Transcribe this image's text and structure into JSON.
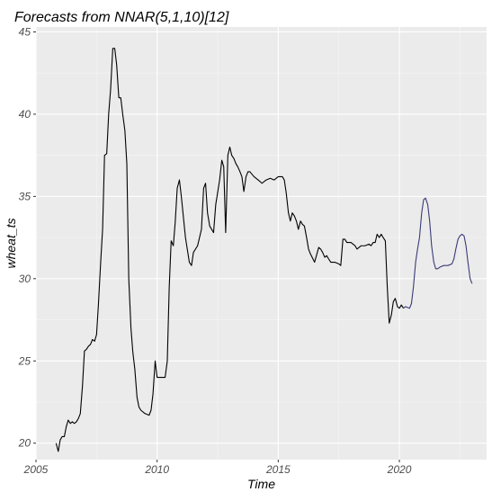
{
  "chart_data": {
    "type": "line",
    "title": "Forecasts from NNAR(5,1,10)[12]",
    "xlabel": "Time",
    "ylabel": "wheat_ts",
    "xlim": [
      2005.0,
      2023.6
    ],
    "ylim": [
      19.0,
      45.3
    ],
    "x_ticks": [
      2005,
      2010,
      2015,
      2020
    ],
    "x_tick_labels": [
      "2005",
      "2010",
      "2015",
      "2020"
    ],
    "y_ticks": [
      20,
      25,
      30,
      35,
      40,
      45
    ],
    "y_tick_labels": [
      "20",
      "25",
      "30",
      "35",
      "40",
      "45"
    ],
    "grid": true,
    "legend": "none",
    "colors": {
      "panel_bg": "#ebebeb",
      "grid_major": "#ffffff",
      "grid_minor": "#f5f5f5",
      "observed": "#000000",
      "forecast": "#3a3a7a"
    },
    "series": [
      {
        "points": [
          [
            2005.83,
            20.0
          ],
          [
            2005.92,
            19.5
          ],
          [
            2006.0,
            20.2
          ],
          [
            2006.08,
            20.4
          ],
          [
            2006.17,
            20.4
          ],
          [
            2006.25,
            21.0
          ],
          [
            2006.33,
            21.4
          ],
          [
            2006.42,
            21.2
          ],
          [
            2006.5,
            21.3
          ],
          [
            2006.58,
            21.2
          ],
          [
            2006.67,
            21.3
          ],
          [
            2006.75,
            21.5
          ],
          [
            2006.83,
            21.8
          ],
          [
            2006.92,
            23.5
          ],
          [
            2007.0,
            25.6
          ],
          [
            2007.08,
            25.7
          ],
          [
            2007.17,
            25.9
          ],
          [
            2007.25,
            26.0
          ],
          [
            2007.33,
            26.3
          ],
          [
            2007.42,
            26.2
          ],
          [
            2007.5,
            26.6
          ],
          [
            2007.58,
            28.5
          ],
          [
            2007.67,
            31.0
          ],
          [
            2007.75,
            33.0
          ],
          [
            2007.83,
            37.5
          ],
          [
            2007.92,
            37.6
          ],
          [
            2008.0,
            40.0
          ],
          [
            2008.08,
            41.5
          ],
          [
            2008.17,
            44.0
          ],
          [
            2008.25,
            44.0
          ],
          [
            2008.33,
            43.0
          ],
          [
            2008.42,
            41.0
          ],
          [
            2008.5,
            41.0
          ],
          [
            2008.58,
            40.0
          ],
          [
            2008.67,
            39.0
          ],
          [
            2008.75,
            37.0
          ],
          [
            2008.83,
            30.0
          ],
          [
            2008.92,
            27.0
          ],
          [
            2009.0,
            25.5
          ],
          [
            2009.08,
            24.5
          ],
          [
            2009.17,
            22.8
          ],
          [
            2009.25,
            22.2
          ],
          [
            2009.33,
            22.0
          ],
          [
            2009.5,
            21.8
          ],
          [
            2009.67,
            21.7
          ],
          [
            2009.75,
            22.0
          ],
          [
            2009.83,
            23.0
          ],
          [
            2009.92,
            25.0
          ],
          [
            2010.0,
            24.0
          ],
          [
            2010.17,
            24.0
          ],
          [
            2010.33,
            24.0
          ],
          [
            2010.42,
            25.0
          ],
          [
            2010.5,
            29.5
          ],
          [
            2010.58,
            32.3
          ],
          [
            2010.67,
            32.0
          ],
          [
            2010.75,
            33.5
          ],
          [
            2010.83,
            35.5
          ],
          [
            2010.92,
            36.0
          ],
          [
            2011.0,
            35.0
          ],
          [
            2011.17,
            32.5
          ],
          [
            2011.33,
            31.0
          ],
          [
            2011.42,
            30.8
          ],
          [
            2011.5,
            31.6
          ],
          [
            2011.67,
            32.0
          ],
          [
            2011.83,
            33.0
          ],
          [
            2011.92,
            35.5
          ],
          [
            2012.0,
            35.8
          ],
          [
            2012.08,
            34.0
          ],
          [
            2012.17,
            33.2
          ],
          [
            2012.25,
            33.0
          ],
          [
            2012.33,
            32.8
          ],
          [
            2012.42,
            34.5
          ],
          [
            2012.58,
            36.0
          ],
          [
            2012.67,
            37.2
          ],
          [
            2012.75,
            36.8
          ],
          [
            2012.83,
            32.8
          ],
          [
            2012.92,
            37.5
          ],
          [
            2013.0,
            38.0
          ],
          [
            2013.08,
            37.5
          ],
          [
            2013.17,
            37.3
          ],
          [
            2013.25,
            37.0
          ],
          [
            2013.33,
            36.8
          ],
          [
            2013.42,
            36.5
          ],
          [
            2013.5,
            36.2
          ],
          [
            2013.58,
            35.3
          ],
          [
            2013.67,
            36.2
          ],
          [
            2013.75,
            36.5
          ],
          [
            2013.83,
            36.5
          ],
          [
            2014.0,
            36.2
          ],
          [
            2014.17,
            36.0
          ],
          [
            2014.33,
            35.8
          ],
          [
            2014.5,
            36.0
          ],
          [
            2014.67,
            36.1
          ],
          [
            2014.83,
            36.0
          ],
          [
            2015.0,
            36.2
          ],
          [
            2015.17,
            36.2
          ],
          [
            2015.25,
            36.0
          ],
          [
            2015.33,
            35.2
          ],
          [
            2015.42,
            34.0
          ],
          [
            2015.5,
            33.5
          ],
          [
            2015.58,
            34.0
          ],
          [
            2015.67,
            33.8
          ],
          [
            2015.75,
            33.5
          ],
          [
            2015.83,
            33.0
          ],
          [
            2015.92,
            33.5
          ],
          [
            2016.0,
            33.3
          ],
          [
            2016.08,
            33.2
          ],
          [
            2016.17,
            32.5
          ],
          [
            2016.25,
            31.8
          ],
          [
            2016.33,
            31.5
          ],
          [
            2016.5,
            31.0
          ],
          [
            2016.67,
            31.9
          ],
          [
            2016.75,
            31.8
          ],
          [
            2016.83,
            31.6
          ],
          [
            2016.92,
            31.3
          ],
          [
            2017.0,
            31.4
          ],
          [
            2017.08,
            31.2
          ],
          [
            2017.17,
            31.0
          ],
          [
            2017.33,
            31.0
          ],
          [
            2017.5,
            30.9
          ],
          [
            2017.58,
            30.8
          ],
          [
            2017.67,
            32.4
          ],
          [
            2017.75,
            32.4
          ],
          [
            2017.83,
            32.2
          ],
          [
            2018.0,
            32.2
          ],
          [
            2018.17,
            32.0
          ],
          [
            2018.25,
            31.8
          ],
          [
            2018.42,
            32.0
          ],
          [
            2018.58,
            32.0
          ],
          [
            2018.75,
            32.1
          ],
          [
            2018.83,
            32.0
          ],
          [
            2018.92,
            32.2
          ],
          [
            2019.0,
            32.2
          ],
          [
            2019.08,
            32.7
          ],
          [
            2019.17,
            32.5
          ],
          [
            2019.25,
            32.7
          ],
          [
            2019.33,
            32.5
          ],
          [
            2019.42,
            32.3
          ],
          [
            2019.5,
            29.5
          ],
          [
            2019.58,
            27.3
          ],
          [
            2019.67,
            27.8
          ],
          [
            2019.75,
            28.6
          ],
          [
            2019.83,
            28.8
          ],
          [
            2019.92,
            28.3
          ],
          [
            2020.0,
            28.2
          ],
          [
            2020.08,
            28.4
          ],
          [
            2020.17,
            28.2
          ]
        ]
      },
      {
        "points": [
          [
            2020.17,
            28.2
          ],
          [
            2020.25,
            28.3
          ],
          [
            2020.42,
            28.2
          ],
          [
            2020.5,
            28.5
          ],
          [
            2020.58,
            29.5
          ],
          [
            2020.67,
            31.0
          ],
          [
            2020.75,
            31.8
          ],
          [
            2020.83,
            32.5
          ],
          [
            2020.92,
            34.0
          ],
          [
            2021.0,
            34.8
          ],
          [
            2021.08,
            34.9
          ],
          [
            2021.17,
            34.5
          ],
          [
            2021.25,
            33.5
          ],
          [
            2021.33,
            32.0
          ],
          [
            2021.42,
            31.0
          ],
          [
            2021.5,
            30.6
          ],
          [
            2021.58,
            30.6
          ],
          [
            2021.67,
            30.7
          ],
          [
            2021.83,
            30.8
          ],
          [
            2022.0,
            30.8
          ],
          [
            2022.17,
            30.9
          ],
          [
            2022.25,
            31.2
          ],
          [
            2022.33,
            31.8
          ],
          [
            2022.42,
            32.4
          ],
          [
            2022.5,
            32.6
          ],
          [
            2022.58,
            32.7
          ],
          [
            2022.67,
            32.6
          ],
          [
            2022.75,
            32.0
          ],
          [
            2022.83,
            31.0
          ],
          [
            2022.92,
            30.0
          ],
          [
            2023.0,
            29.7
          ]
        ]
      }
    ]
  }
}
